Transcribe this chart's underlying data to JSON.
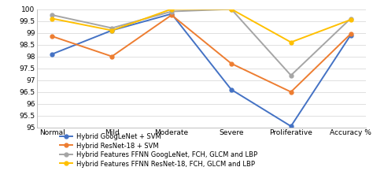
{
  "categories": [
    "Normal",
    "Mild",
    "Moderate",
    "Severe",
    "Proliferative",
    "Accuracy %"
  ],
  "series": [
    {
      "label": "Hybrid GoogLeNet + SVM",
      "color": "#4472C4",
      "marker": "o",
      "values": [
        98.1,
        99.1,
        99.8,
        96.6,
        95.05,
        98.9
      ]
    },
    {
      "label": "Hybrid ResNet-18 + SVM",
      "color": "#ED7D31",
      "marker": "o",
      "values": [
        98.85,
        98.0,
        99.75,
        97.7,
        96.5,
        98.95
      ]
    },
    {
      "label": "Hybrid Features FFNN GoogLeNet, FCH, GLCM and LBP",
      "color": "#A5A5A5",
      "marker": "o",
      "values": [
        99.75,
        99.2,
        99.9,
        100.0,
        97.2,
        99.6
      ]
    },
    {
      "label": "Hybrid Features FFNN ResNet-18, FCH, GLCM and LBP",
      "color": "#FFC000",
      "marker": "o",
      "values": [
        99.6,
        99.1,
        100.0,
        100.0,
        98.6,
        99.55
      ]
    }
  ],
  "ylim": [
    95,
    100
  ],
  "yticks": [
    95,
    95.5,
    96,
    96.5,
    97,
    97.5,
    98,
    98.5,
    99,
    99.5,
    100
  ],
  "background_color": "#FFFFFF",
  "grid_color": "#E0E0E0",
  "legend_fontsize": 6.0,
  "tick_fontsize": 6.5,
  "figsize": [
    4.74,
    2.31
  ],
  "dpi": 100
}
